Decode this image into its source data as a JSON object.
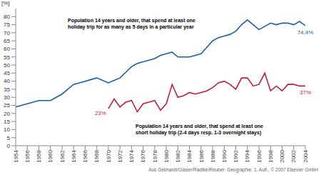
{
  "chart_data": {
    "type": "line",
    "y_label": "[%]",
    "source": "Aus Gebhardt/Glaser/Radtke/Reuber: Geographie. 1. Aufl., © 2007 Elsevier GmbH",
    "x": [
      1954,
      1955,
      1956,
      1957,
      1958,
      1959,
      1960,
      1961,
      1962,
      1963,
      1964,
      1965,
      1966,
      1967,
      1968,
      1969,
      1970,
      1971,
      1972,
      1973,
      1974,
      1975,
      1976,
      1977,
      1978,
      1979,
      1980,
      1981,
      1982,
      1983,
      1984,
      1985,
      1986,
      1987,
      1988,
      1989,
      1990,
      1991,
      1992,
      1993,
      1994,
      1995,
      1996,
      1997,
      1998,
      1999,
      2000,
      2001,
      2002,
      2003,
      2004
    ],
    "series": [
      {
        "name": "Population 14 years and older, that spend at least one holiday trip for as many as 5 days in a particular year",
        "color": "#1a5ea8",
        "values": [
          24,
          25,
          26,
          27,
          28,
          28,
          28,
          30,
          32,
          35,
          38,
          39,
          40,
          41,
          42,
          40.5,
          39,
          40.5,
          42,
          45.5,
          49,
          51,
          52,
          53,
          54,
          56,
          57,
          58,
          55,
          55,
          55,
          56,
          57,
          61,
          65,
          67,
          68,
          69,
          71,
          75,
          78,
          75,
          72,
          74,
          76,
          75,
          76,
          76,
          75,
          77,
          74.4
        ]
      },
      {
        "name": "Population 14 years and older, that spend at least one short holiday trip (2-4 days resp. 1-3 overnight stays)",
        "color": "#c41e3a",
        "values": [
          null,
          null,
          null,
          null,
          null,
          null,
          null,
          null,
          null,
          null,
          null,
          null,
          null,
          null,
          null,
          null,
          23,
          29,
          24,
          27,
          28,
          21,
          26,
          27,
          28,
          22,
          26,
          38,
          30,
          31,
          33,
          32,
          33,
          34,
          36,
          39,
          40,
          38,
          35,
          42,
          42,
          37,
          38,
          45,
          34,
          37,
          34,
          38,
          38,
          37,
          37
        ]
      }
    ],
    "annotations": [
      {
        "lines": [
          "Population 14 years and older, that spend at least one",
          "holiday trip for as many as 5 days in a particular year"
        ]
      },
      {
        "lines": [
          "Population 14 years and older, that spend at least one",
          "short holiday trip (2-4 days resp. 1-3 overnight stays)"
        ]
      }
    ],
    "point_labels": [
      {
        "text": "74,4%",
        "series": 0,
        "x": 2004
      },
      {
        "text": "23%",
        "series": 1,
        "x": 1970
      },
      {
        "text": "37%",
        "series": 1,
        "x": 2004
      }
    ],
    "xlim": [
      1954,
      2004
    ],
    "xticks": [
      1954,
      1956,
      1958,
      1960,
      1962,
      1964,
      1966,
      1968,
      1970,
      1972,
      1974,
      1976,
      1978,
      1980,
      1982,
      1984,
      1986,
      1988,
      1990,
      1992,
      1994,
      1996,
      1998,
      2000,
      2002,
      2004
    ],
    "ylim": [
      0,
      85
    ],
    "yticks": [
      0,
      5,
      10,
      15,
      20,
      25,
      30,
      35,
      40,
      45,
      50,
      55,
      60,
      65,
      70,
      75,
      80
    ],
    "grid": false,
    "legend": false
  }
}
